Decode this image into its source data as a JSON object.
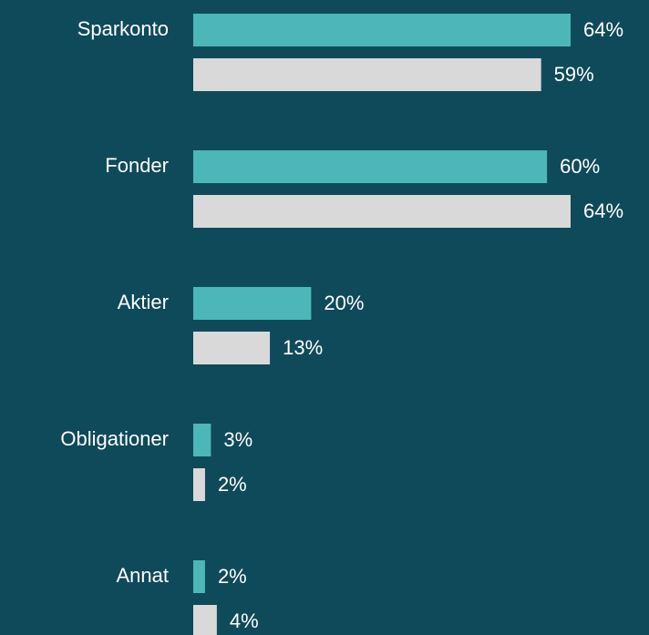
{
  "chart_data": {
    "type": "hbar",
    "categories": [
      "Sparkonto",
      "Fonder",
      "Aktier",
      "Obligationer",
      "Annat"
    ],
    "series": [
      {
        "color": "#4db6b9",
        "values": [
          64,
          60,
          20,
          3,
          2
        ],
        "value_labels": [
          "64%",
          "60%",
          "20%",
          "3%",
          "2%"
        ]
      },
      {
        "color": "#d9d9d9",
        "values": [
          59,
          64,
          13,
          2,
          4
        ],
        "value_labels": [
          "59%",
          "64%",
          "13%",
          "2%",
          "4%"
        ]
      }
    ],
    "background": "#0f4a5a"
  }
}
